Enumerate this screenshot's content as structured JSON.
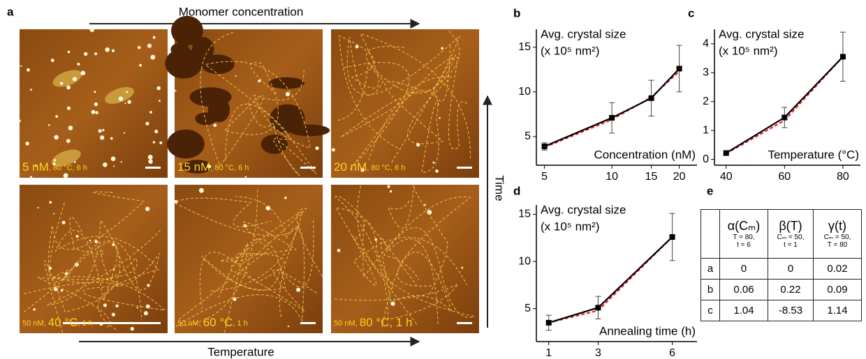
{
  "panels": {
    "a": "a",
    "b": "b",
    "c": "c",
    "d": "d",
    "e": "e"
  },
  "arrows": {
    "top": "Monomer concentration",
    "bottom": "Temperature",
    "side": "Time"
  },
  "images": [
    {
      "label": [
        "5 nM",
        ", 80 °C, 6 h"
      ]
    },
    {
      "label": [
        "15 nM",
        ", 80 °C, 6 h"
      ]
    },
    {
      "label": [
        "20 nM",
        ", 80 °C",
        ", 6 h"
      ]
    },
    {
      "label": [
        "50 nM, ",
        "40 °C",
        ", 1 h"
      ]
    },
    {
      "label": [
        "50 nM, ",
        "60 °C",
        ", 1 h"
      ]
    },
    {
      "label": [
        "50 nM, ",
        "80 °C, 1 h"
      ]
    }
  ],
  "chart_data": [
    {
      "type": "line",
      "title": "Avg. crystal size",
      "subtitle": "(x 10⁵ nm²)",
      "x_label": "Concentration (nM)",
      "xscale": "log",
      "x": [
        5,
        10,
        15,
        20
      ],
      "xlim": [
        4.6,
        24
      ],
      "xticks": [
        5,
        10,
        15,
        20
      ],
      "ylim": [
        1.8,
        17
      ],
      "yticks": [
        5,
        10,
        15
      ],
      "series": [
        {
          "color": "#000000",
          "values": [
            3.9,
            7.1,
            9.3,
            12.6
          ],
          "errors": [
            0.4,
            1.7,
            2.0,
            2.6
          ]
        },
        {
          "color": "#e8232a",
          "dashed": true,
          "values": [
            3.8,
            6.9,
            9.4,
            12.3
          ]
        }
      ]
    },
    {
      "type": "line",
      "title": "Avg. crystal size",
      "subtitle": "(x 10⁵ nm²)",
      "x_label": "Temperature (°C)",
      "x": [
        40,
        60,
        80
      ],
      "xlim": [
        36,
        86
      ],
      "xticks": [
        40,
        60,
        80
      ],
      "ylim": [
        -0.2,
        4.5
      ],
      "yticks": [
        0,
        1,
        2,
        3,
        4
      ],
      "series": [
        {
          "color": "#000000",
          "values": [
            0.22,
            1.45,
            3.55
          ],
          "errors": [
            0.05,
            0.35,
            0.85
          ]
        },
        {
          "color": "#e8232a",
          "dashed": true,
          "values": [
            0.2,
            1.35,
            3.55
          ]
        }
      ]
    },
    {
      "type": "line",
      "title": "Avg. crystal size",
      "subtitle": "(x 10⁵ nm²)",
      "x_label": "Annealing time (h)",
      "x": [
        1,
        3,
        6
      ],
      "xlim": [
        0.5,
        7
      ],
      "xticks": [
        1,
        3,
        6
      ],
      "ylim": [
        1.5,
        16
      ],
      "yticks": [
        5,
        10,
        15
      ],
      "series": [
        {
          "color": "#000000",
          "values": [
            3.5,
            5.1,
            12.6
          ],
          "errors": [
            0.8,
            1.2,
            2.5
          ]
        },
        {
          "color": "#e8232a",
          "dashed": true,
          "values": [
            3.5,
            4.8,
            12.6
          ]
        }
      ]
    }
  ],
  "table": {
    "header": [
      {
        "symbol": "α(Cₘ)",
        "condition": [
          "T = 80,",
          "t = 6"
        ]
      },
      {
        "symbol": "β(T)",
        "condition": [
          "Cₘ = 50,",
          "t = 1"
        ]
      },
      {
        "symbol": "γ(t)",
        "condition": [
          "Cₘ = 50,",
          "T = 80"
        ]
      }
    ],
    "rows": [
      [
        "a",
        "0",
        "0",
        "0.02"
      ],
      [
        "b",
        "0.06",
        "0.22",
        "0.09"
      ],
      [
        "c",
        "1.04",
        "-8.53",
        "1.14"
      ]
    ]
  }
}
